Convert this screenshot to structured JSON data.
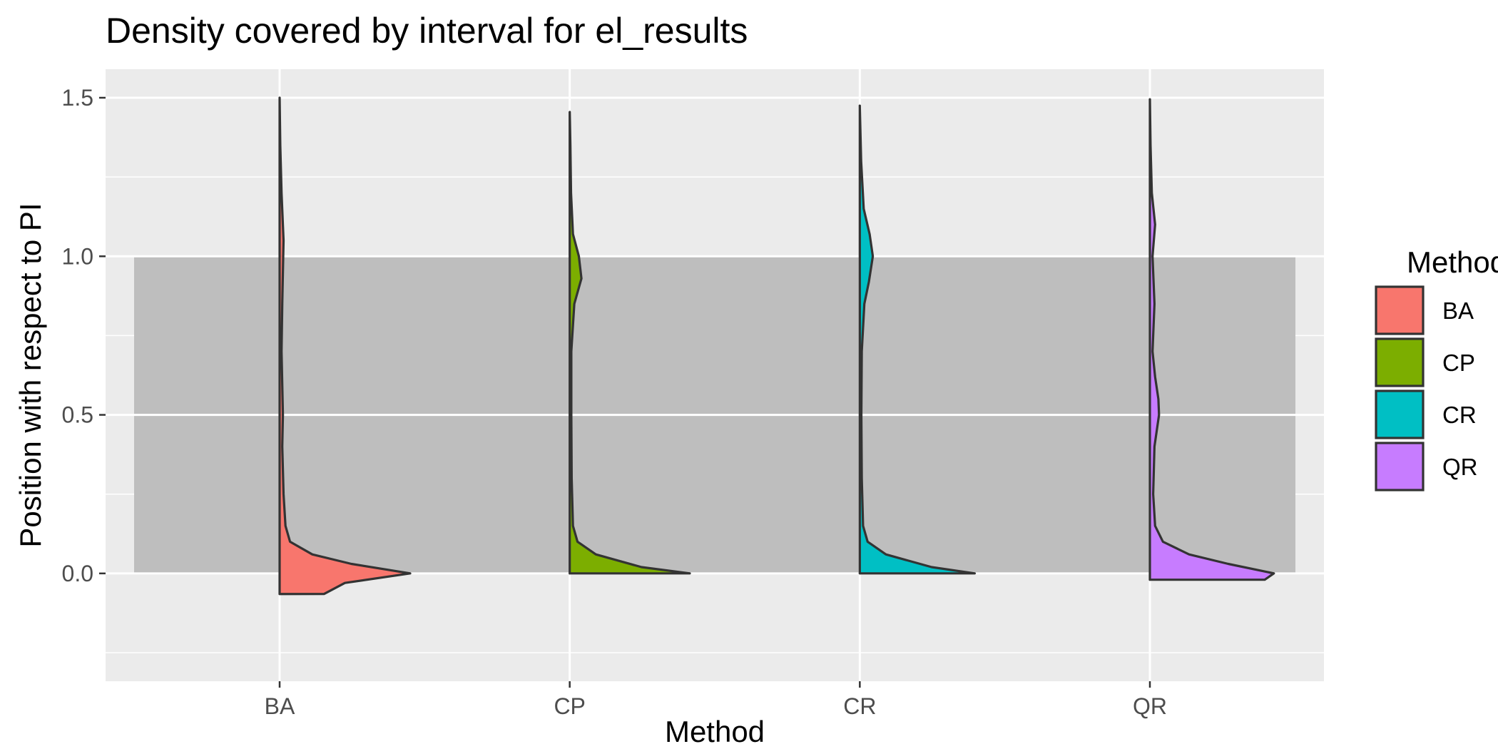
{
  "chart_data": {
    "type": "violin-half",
    "title": "Density covered by interval for el_results",
    "xlabel": "Method",
    "ylabel": "Position with respect to PI",
    "categories": [
      "BA",
      "CP",
      "CR",
      "QR"
    ],
    "ylim": [
      -0.34,
      1.59
    ],
    "yticks": [
      0.0,
      0.5,
      1.0,
      1.5
    ],
    "ytick_labels": [
      "0.0",
      "0.5",
      "1.0",
      "1.5"
    ],
    "grid": true,
    "shaded_interval": {
      "ymin": 0.0,
      "ymax": 1.0,
      "color": "#bebebe"
    },
    "legend": {
      "title": "Method",
      "position": "right"
    },
    "series": [
      {
        "name": "BA",
        "color": "#F8766D",
        "y_min": -0.065,
        "y_max": 1.5,
        "density": [
          [
            -0.065,
            0.34
          ],
          [
            -0.03,
            0.5
          ],
          [
            0.0,
            1.0
          ],
          [
            0.03,
            0.55
          ],
          [
            0.06,
            0.25
          ],
          [
            0.1,
            0.08
          ],
          [
            0.15,
            0.045
          ],
          [
            0.25,
            0.03
          ],
          [
            0.4,
            0.02
          ],
          [
            0.5,
            0.025
          ],
          [
            0.7,
            0.015
          ],
          [
            0.85,
            0.02
          ],
          [
            0.95,
            0.025
          ],
          [
            1.05,
            0.03
          ],
          [
            1.2,
            0.015
          ],
          [
            1.35,
            0.005
          ],
          [
            1.5,
            0.0
          ]
        ]
      },
      {
        "name": "CP",
        "color": "#7CAE00",
        "y_min": 0.0,
        "y_max": 1.455,
        "density": [
          [
            0.0,
            0.0
          ],
          [
            0.0,
            0.92
          ],
          [
            0.02,
            0.55
          ],
          [
            0.06,
            0.2
          ],
          [
            0.1,
            0.06
          ],
          [
            0.15,
            0.025
          ],
          [
            0.3,
            0.015
          ],
          [
            0.5,
            0.012
          ],
          [
            0.7,
            0.012
          ],
          [
            0.85,
            0.035
          ],
          [
            0.93,
            0.09
          ],
          [
            1.0,
            0.07
          ],
          [
            1.07,
            0.025
          ],
          [
            1.2,
            0.01
          ],
          [
            1.35,
            0.005
          ],
          [
            1.455,
            0.0
          ]
        ]
      },
      {
        "name": "CR",
        "color": "#00BFC4",
        "y_min": 0.0,
        "y_max": 1.475,
        "density": [
          [
            0.0,
            0.0
          ],
          [
            0.0,
            0.88
          ],
          [
            0.02,
            0.55
          ],
          [
            0.06,
            0.2
          ],
          [
            0.1,
            0.06
          ],
          [
            0.15,
            0.025
          ],
          [
            0.3,
            0.015
          ],
          [
            0.5,
            0.012
          ],
          [
            0.7,
            0.015
          ],
          [
            0.85,
            0.035
          ],
          [
            0.92,
            0.07
          ],
          [
            1.0,
            0.1
          ],
          [
            1.07,
            0.075
          ],
          [
            1.15,
            0.03
          ],
          [
            1.3,
            0.01
          ],
          [
            1.475,
            0.0
          ]
        ]
      },
      {
        "name": "QR",
        "color": "#C77CFF",
        "y_min": -0.02,
        "y_max": 1.495,
        "density": [
          [
            -0.02,
            0.0
          ],
          [
            -0.02,
            0.88
          ],
          [
            0.0,
            0.95
          ],
          [
            0.03,
            0.6
          ],
          [
            0.06,
            0.3
          ],
          [
            0.1,
            0.1
          ],
          [
            0.15,
            0.04
          ],
          [
            0.25,
            0.025
          ],
          [
            0.4,
            0.035
          ],
          [
            0.5,
            0.07
          ],
          [
            0.55,
            0.065
          ],
          [
            0.62,
            0.04
          ],
          [
            0.7,
            0.02
          ],
          [
            0.85,
            0.035
          ],
          [
            1.0,
            0.02
          ],
          [
            1.1,
            0.04
          ],
          [
            1.2,
            0.015
          ],
          [
            1.35,
            0.005
          ],
          [
            1.495,
            0.0
          ]
        ]
      }
    ]
  }
}
